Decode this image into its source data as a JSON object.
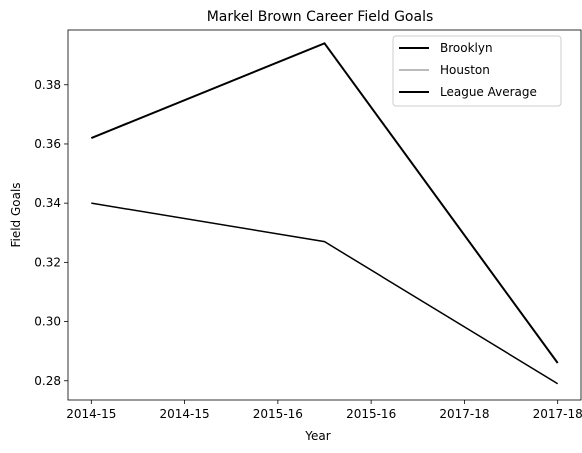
{
  "chart_data": {
    "type": "line",
    "title": "Markel Brown Career Field Goals",
    "xlabel": "Year",
    "ylabel": "Field Goals",
    "x_ticks": [
      "2014-15",
      "2014-15",
      "2015-16",
      "2015-16",
      "2017-18",
      "2017-18"
    ],
    "x_range": [
      -0.1,
      2.1
    ],
    "ylim": [
      0.2735,
      0.3985
    ],
    "y_ticks": [
      0.28,
      0.3,
      0.32,
      0.34,
      0.36,
      0.38
    ],
    "grid": false,
    "legend_position": "top-right",
    "series": [
      {
        "name": "Brooklyn",
        "color": "#000000",
        "x": [
          0,
          1,
          2
        ],
        "values": [
          0.362,
          0.394,
          0.286
        ]
      },
      {
        "name": "Houston",
        "color": "#bbbbbb",
        "x": [],
        "values": []
      },
      {
        "name": "League Average",
        "color": "#000000",
        "x": [
          0,
          1,
          2
        ],
        "values": [
          0.34,
          0.327,
          0.279
        ]
      }
    ]
  }
}
